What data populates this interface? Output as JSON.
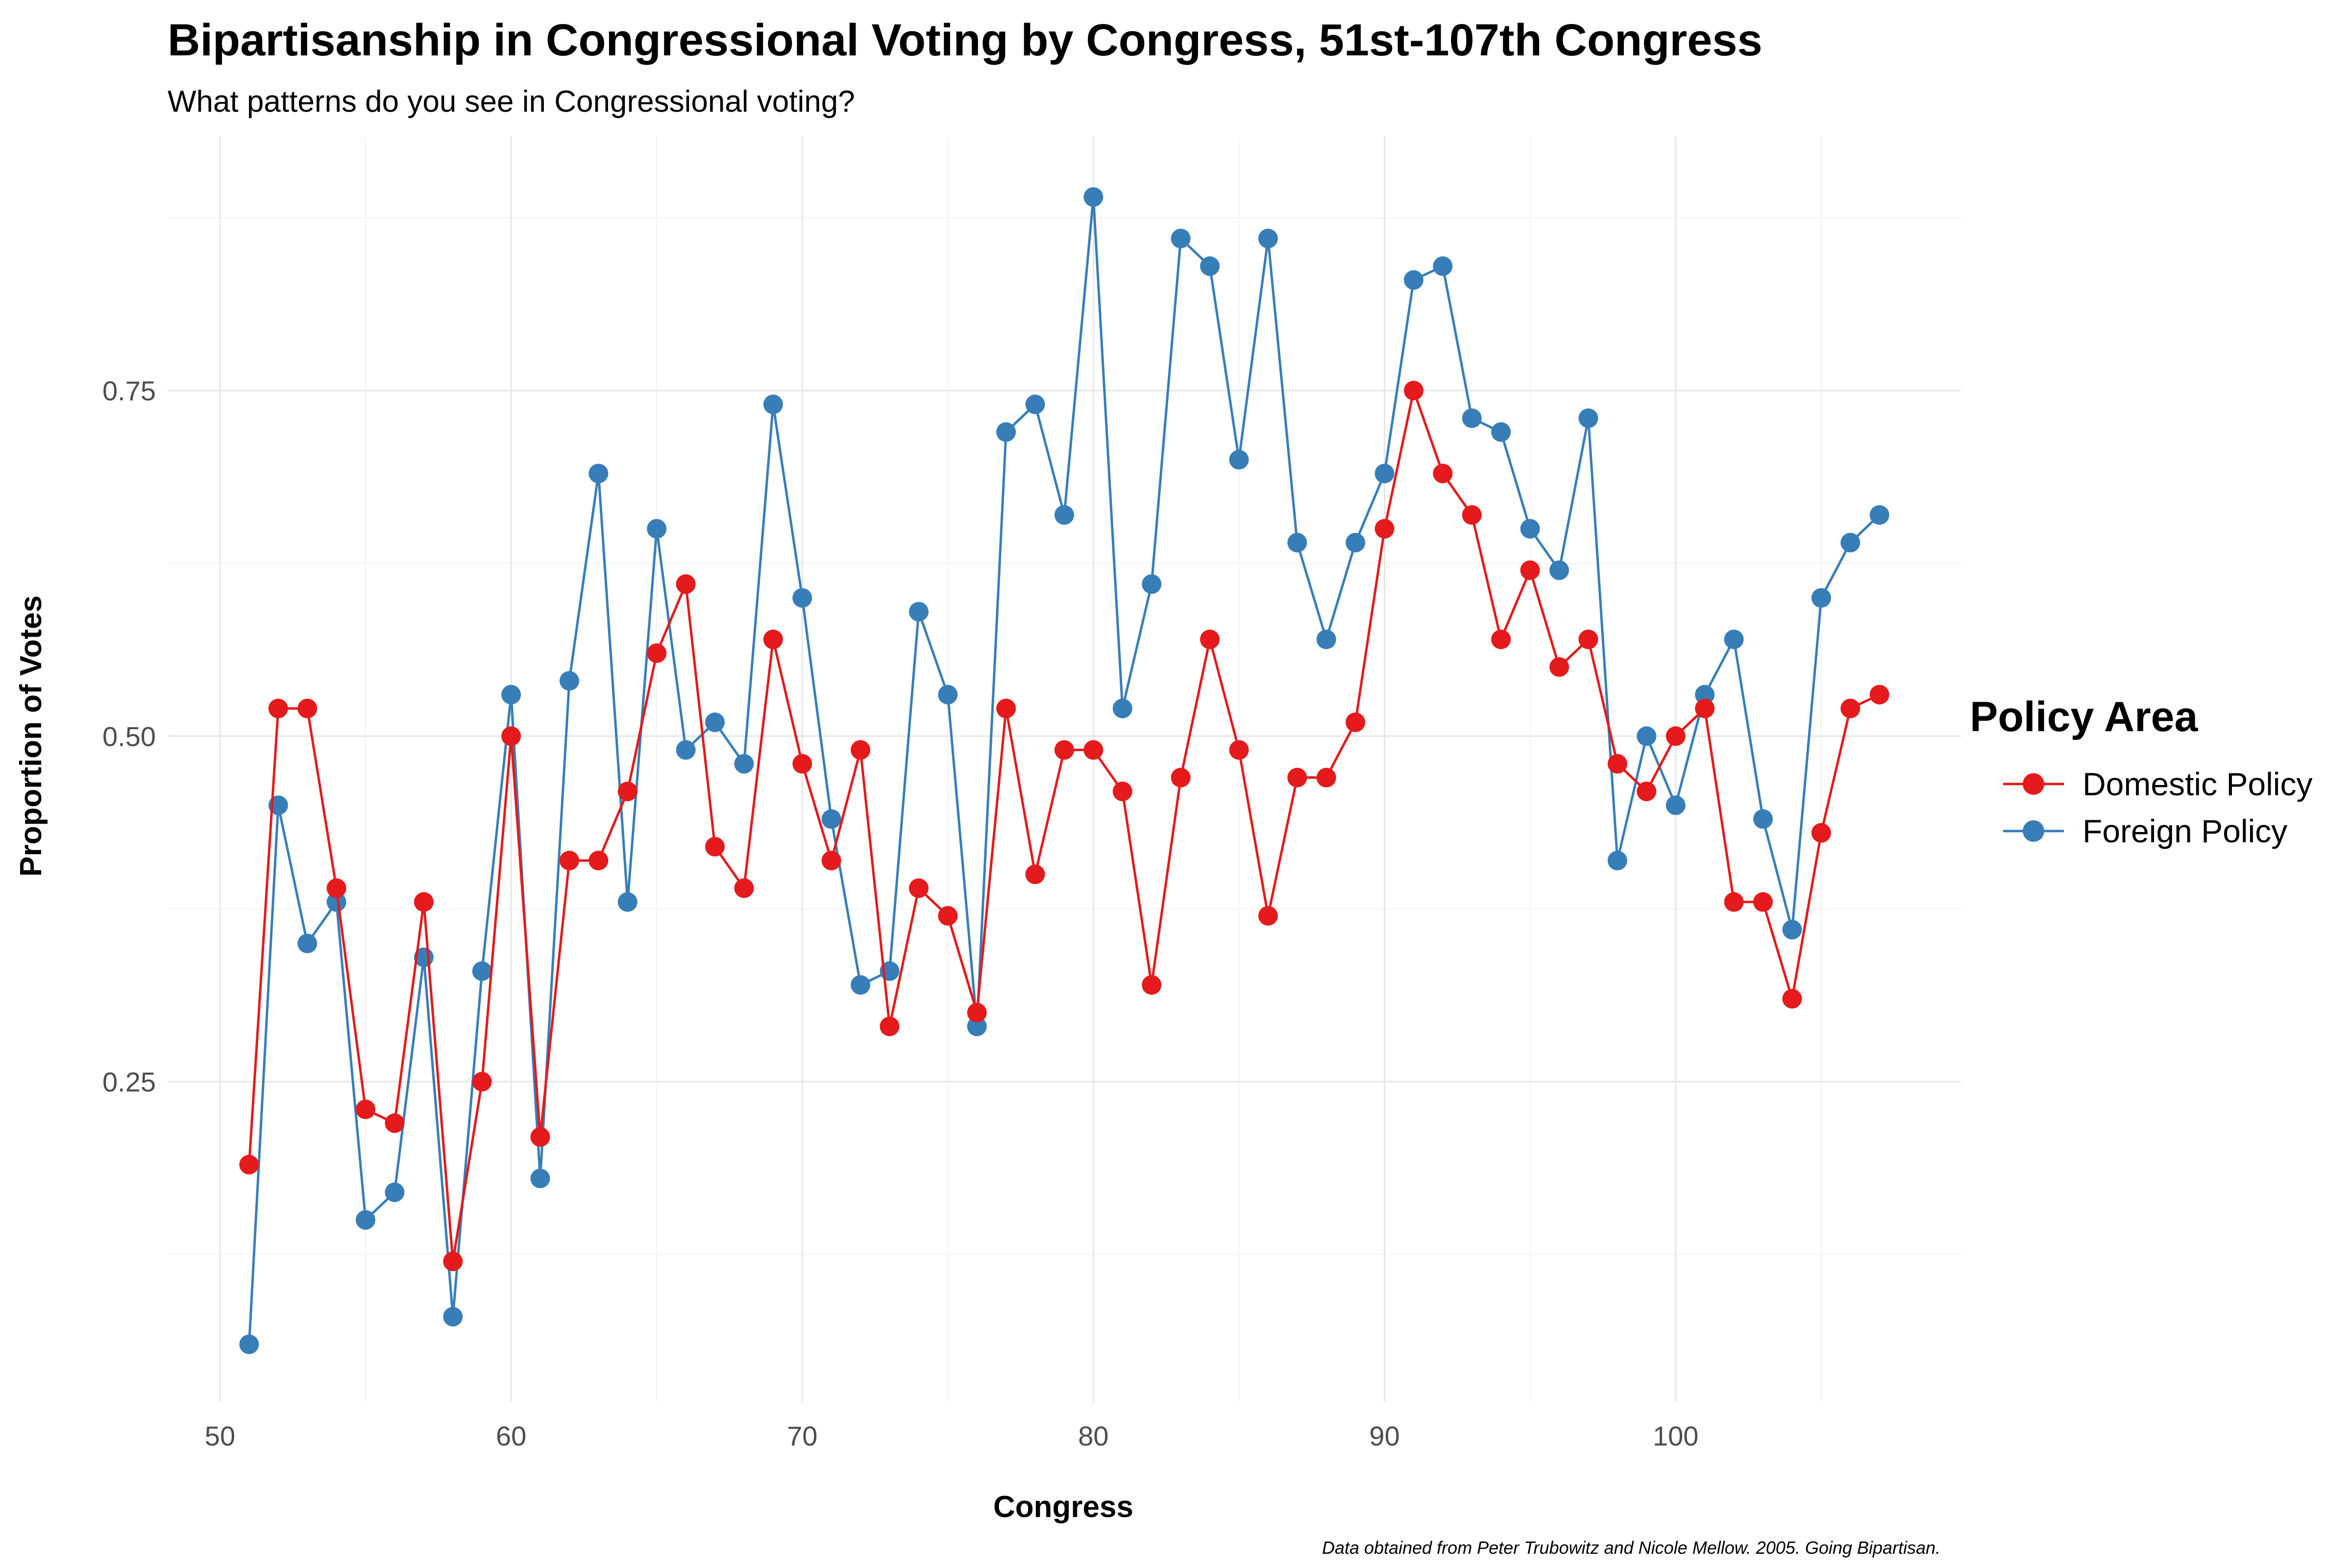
{
  "chart_data": {
    "type": "line",
    "title": "Bipartisanship in Congressional Voting by Congress, 51st-107th Congress",
    "subtitle": "What patterns do you see in Congressional voting?",
    "xlabel": "Congress",
    "ylabel": "Proportion of Votes",
    "caption": "Data obtained from Peter Trubowitz and Nicole Mellow. 2005. Going Bipartisan.",
    "xlim": [
      48.2,
      109.8
    ],
    "ylim": [
      0.018,
      0.934
    ],
    "x_ticks": [
      50,
      60,
      70,
      80,
      90,
      100
    ],
    "x_tick_labels": [
      "50",
      "60",
      "70",
      "80",
      "90",
      "100"
    ],
    "y_ticks": [
      0.25,
      0.5,
      0.75
    ],
    "y_tick_labels": [
      "0.25",
      "0.50",
      "0.75"
    ],
    "grid": true,
    "legend": {
      "title": "Policy Area",
      "position": "right"
    },
    "x": [
      51,
      52,
      53,
      54,
      55,
      56,
      57,
      58,
      59,
      60,
      61,
      62,
      63,
      64,
      65,
      66,
      67,
      68,
      69,
      70,
      71,
      72,
      73,
      74,
      75,
      76,
      77,
      78,
      79,
      80,
      81,
      82,
      83,
      84,
      85,
      86,
      87,
      88,
      89,
      90,
      91,
      92,
      93,
      94,
      95,
      96,
      97,
      98,
      99,
      100,
      101,
      102,
      103,
      104,
      105,
      106,
      107
    ],
    "series": [
      {
        "name": "Domestic Policy",
        "color": "#e41a1c",
        "values": [
          0.19,
          0.52,
          0.52,
          0.39,
          0.23,
          0.22,
          0.38,
          0.12,
          0.25,
          0.5,
          0.21,
          0.41,
          0.41,
          0.46,
          0.56,
          0.61,
          0.42,
          0.39,
          0.57,
          0.48,
          0.41,
          0.49,
          0.29,
          0.39,
          0.37,
          0.3,
          0.52,
          0.4,
          0.49,
          0.49,
          0.46,
          0.32,
          0.47,
          0.57,
          0.49,
          0.37,
          0.47,
          0.47,
          0.51,
          0.65,
          0.75,
          0.69,
          0.66,
          0.57,
          0.62,
          0.55,
          0.57,
          0.48,
          0.46,
          0.5,
          0.52,
          0.38,
          0.38,
          0.31,
          0.43,
          0.52,
          0.53
        ]
      },
      {
        "name": "Foreign Policy",
        "color": "#377eb8",
        "values": [
          0.06,
          0.45,
          0.35,
          0.38,
          0.15,
          0.17,
          0.34,
          0.08,
          0.33,
          0.53,
          0.18,
          0.54,
          0.69,
          0.38,
          0.65,
          0.49,
          0.51,
          0.48,
          0.74,
          0.6,
          0.44,
          0.32,
          0.33,
          0.59,
          0.53,
          0.29,
          0.72,
          0.74,
          0.66,
          0.89,
          0.52,
          0.61,
          0.86,
          0.84,
          0.7,
          0.86,
          0.64,
          0.57,
          0.64,
          0.69,
          0.83,
          0.84,
          0.73,
          0.72,
          0.65,
          0.62,
          0.73,
          0.41,
          0.5,
          0.45,
          0.53,
          0.57,
          0.44,
          0.36,
          0.6,
          0.64,
          0.66
        ]
      }
    ]
  }
}
